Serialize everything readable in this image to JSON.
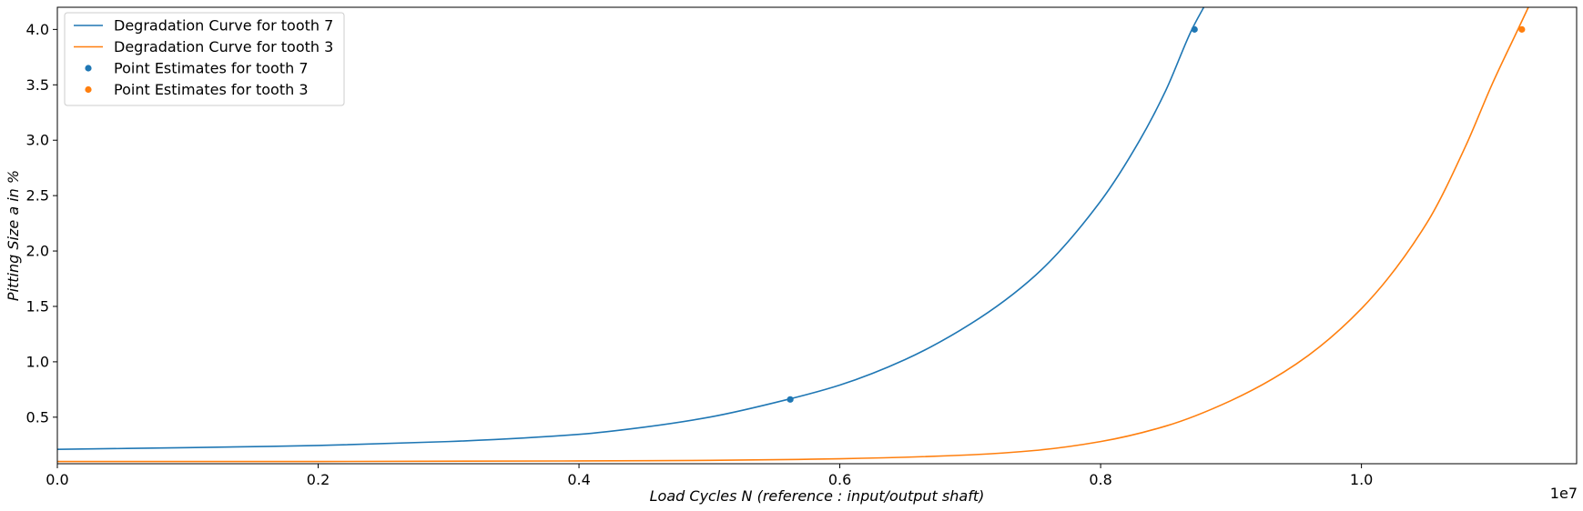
{
  "chart_data": {
    "type": "line",
    "xlabel": "Load Cycles N (reference :  input/output shaft)",
    "ylabel": "Pitting Size a in %",
    "x_scale_note": "1e7",
    "xlim": [
      0,
      11650000
    ],
    "ylim": [
      0.08,
      4.2
    ],
    "x_ticks": [
      0,
      2000000,
      4000000,
      6000000,
      8000000,
      10000000
    ],
    "x_tick_labels": [
      "0.0",
      "0.2",
      "0.4",
      "0.6",
      "0.8",
      "1.0"
    ],
    "y_ticks": [
      0.5,
      1.0,
      1.5,
      2.0,
      2.5,
      3.0,
      3.5,
      4.0
    ],
    "y_tick_labels": [
      "0.5",
      "1.0",
      "1.5",
      "2.0",
      "2.5",
      "3.0",
      "3.5",
      "4.0"
    ],
    "grid": false,
    "legend_position": "top-left",
    "series": [
      {
        "name": "Degradation Curve for tooth 7",
        "kind": "line",
        "color": "#1f77b4",
        "x": [
          0,
          1000000,
          2000000,
          3000000,
          4000000,
          4500000,
          5000000,
          5600000,
          6000000,
          6500000,
          7000000,
          7500000,
          8000000,
          8300000,
          8500000,
          8700000,
          8800000
        ],
        "y": [
          0.21,
          0.225,
          0.245,
          0.28,
          0.345,
          0.41,
          0.5,
          0.66,
          0.79,
          1.02,
          1.34,
          1.78,
          2.45,
          3.0,
          3.45,
          4.0,
          4.22
        ]
      },
      {
        "name": "Degradation Curve for tooth 3",
        "kind": "line",
        "color": "#ff7f0e",
        "x": [
          0,
          2000000,
          4000000,
          5000000,
          6000000,
          7000000,
          7500000,
          8000000,
          8500000,
          9000000,
          9500000,
          10000000,
          10500000,
          10800000,
          11000000,
          11200000,
          11300000
        ],
        "y": [
          0.1,
          0.1,
          0.105,
          0.11,
          0.125,
          0.16,
          0.2,
          0.28,
          0.42,
          0.65,
          0.98,
          1.48,
          2.25,
          2.95,
          3.5,
          4.0,
          4.25
        ]
      },
      {
        "name": "Point Estimates for tooth 7",
        "kind": "scatter",
        "color": "#1f77b4",
        "x": [
          5620000,
          8720000
        ],
        "y": [
          0.66,
          4.0
        ]
      },
      {
        "name": "Point Estimates for tooth 3",
        "kind": "scatter",
        "color": "#ff7f0e",
        "x": [
          11230000
        ],
        "y": [
          4.0
        ]
      }
    ]
  }
}
